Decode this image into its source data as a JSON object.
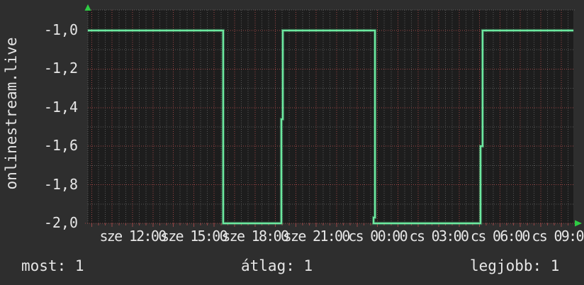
{
  "title": {
    "text": "onlinestream.live"
  },
  "colors": {
    "background": "#2e2e2e",
    "plot_background": "#1d1d1d",
    "line_green": "#6ce9a0",
    "grid_major_red": "#9a4545",
    "grid_minor_gray": "#565656",
    "border_gray": "#5d5d5d",
    "text": "#e6e6e6",
    "arrow_green": "#2ecc44"
  },
  "legend": {
    "most": "most: 1",
    "atlag": "átlag: 1",
    "legjobb": "legjobb: 1"
  },
  "icons": [
    "y-axis-up-arrow-icon",
    "x-axis-right-arrow-icon"
  ],
  "chart_data": {
    "type": "line",
    "title": "onlinestream.live",
    "x_unit": "hours since Wednesday 12:00 (sze = Wed, cs = Thu)",
    "xlim_hours": [
      -2.19,
      21.6
    ],
    "ylim": [
      -2.0,
      -1.0
    ],
    "y_ticks": [
      {
        "v": -1.0,
        "label": "-1,0"
      },
      {
        "v": -1.2,
        "label": "-1,2"
      },
      {
        "v": -1.4,
        "label": "-1,4"
      },
      {
        "v": -1.6,
        "label": "-1,6"
      },
      {
        "v": -1.8,
        "label": "-1,8"
      },
      {
        "v": -2.0,
        "label": "-2,0"
      }
    ],
    "y_minor_ticks": [
      -1.1,
      -1.3,
      -1.5,
      -1.7,
      -1.9
    ],
    "x_ticks": [
      {
        "h": 0,
        "label": "sze 12:00"
      },
      {
        "h": 3,
        "label": "sze 15:00"
      },
      {
        "h": 6,
        "label": "sze 18:00"
      },
      {
        "h": 9,
        "label": "sze 21:00"
      },
      {
        "h": 12,
        "label": "cs 00:00"
      },
      {
        "h": 15,
        "label": "cs 03:00"
      },
      {
        "h": 18,
        "label": "cs 06:00"
      },
      {
        "h": 21,
        "label": "cs 09:00"
      }
    ],
    "grid": {
      "x_minor_step_hours": 0.33333,
      "x_major_step_hours": 1,
      "y_minor_step": 0.1,
      "y_major_step": 0.2,
      "style": "dotted"
    },
    "legend_position": "bottom",
    "series": [
      {
        "name": "onlinestream.live",
        "color": "#6ce9a0",
        "points_h_v": [
          [
            -2.19,
            -1.0
          ],
          [
            4.44,
            -1.0
          ],
          [
            4.44,
            -2.0
          ],
          [
            7.29,
            -2.0
          ],
          [
            7.29,
            -1.46
          ],
          [
            7.36,
            -1.46
          ],
          [
            7.36,
            -1.0
          ],
          [
            11.88,
            -1.0
          ],
          [
            11.88,
            -1.97
          ],
          [
            11.81,
            -1.97
          ],
          [
            11.81,
            -2.0
          ],
          [
            17.05,
            -2.0
          ],
          [
            17.05,
            -1.6
          ],
          [
            17.15,
            -1.6
          ],
          [
            17.15,
            -1.0
          ],
          [
            21.6,
            -1.0
          ]
        ]
      }
    ],
    "summary": {
      "most": 1,
      "atlag": 1,
      "legjobb": 1
    }
  }
}
